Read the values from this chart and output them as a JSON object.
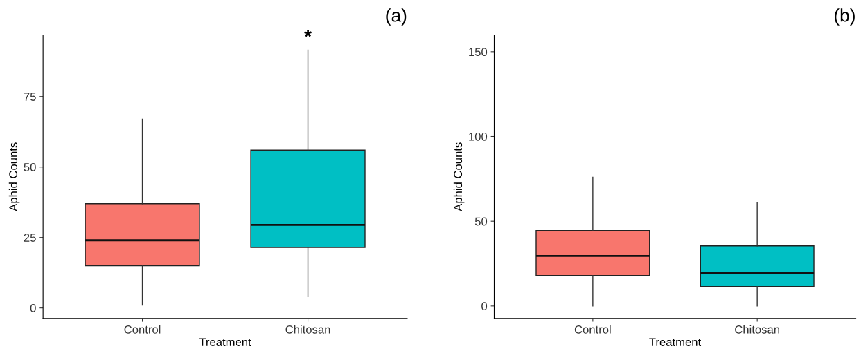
{
  "chart_data": [
    {
      "type": "box",
      "title": "(a)",
      "xlabel": "Treatment",
      "ylabel": "Aphid Counts",
      "categories": [
        "Control",
        "Chitosan"
      ],
      "colors": [
        "#f8766d",
        "#00bfc4"
      ],
      "boxes": [
        {
          "low": 1,
          "q1": 15,
          "median": 24,
          "q3": 37,
          "high": 67
        },
        {
          "low": 4,
          "q1": 21.5,
          "median": 29.5,
          "q3": 56,
          "high": 91.5
        }
      ],
      "ylim": [
        -3.7,
        96.8
      ],
      "yticks": [
        0,
        25,
        50,
        75
      ],
      "grid": false,
      "legend": false,
      "annotations": [
        "*"
      ]
    },
    {
      "type": "box",
      "title": "(b)",
      "xlabel": "Treatment",
      "ylabel": "Aphid Counts",
      "categories": [
        "Control",
        "Chitosan"
      ],
      "colors": [
        "#f8766d",
        "#00bfc4"
      ],
      "boxes": [
        {
          "low": 0,
          "q1": 18,
          "median": 29.5,
          "q3": 44.5,
          "high": 76
        },
        {
          "low": 0,
          "q1": 11.5,
          "median": 19.5,
          "q3": 35.5,
          "high": 61
        }
      ],
      "ylim": [
        -7.3,
        159.8
      ],
      "yticks": [
        0,
        50,
        100,
        150
      ],
      "grid": false,
      "legend": false
    }
  ]
}
